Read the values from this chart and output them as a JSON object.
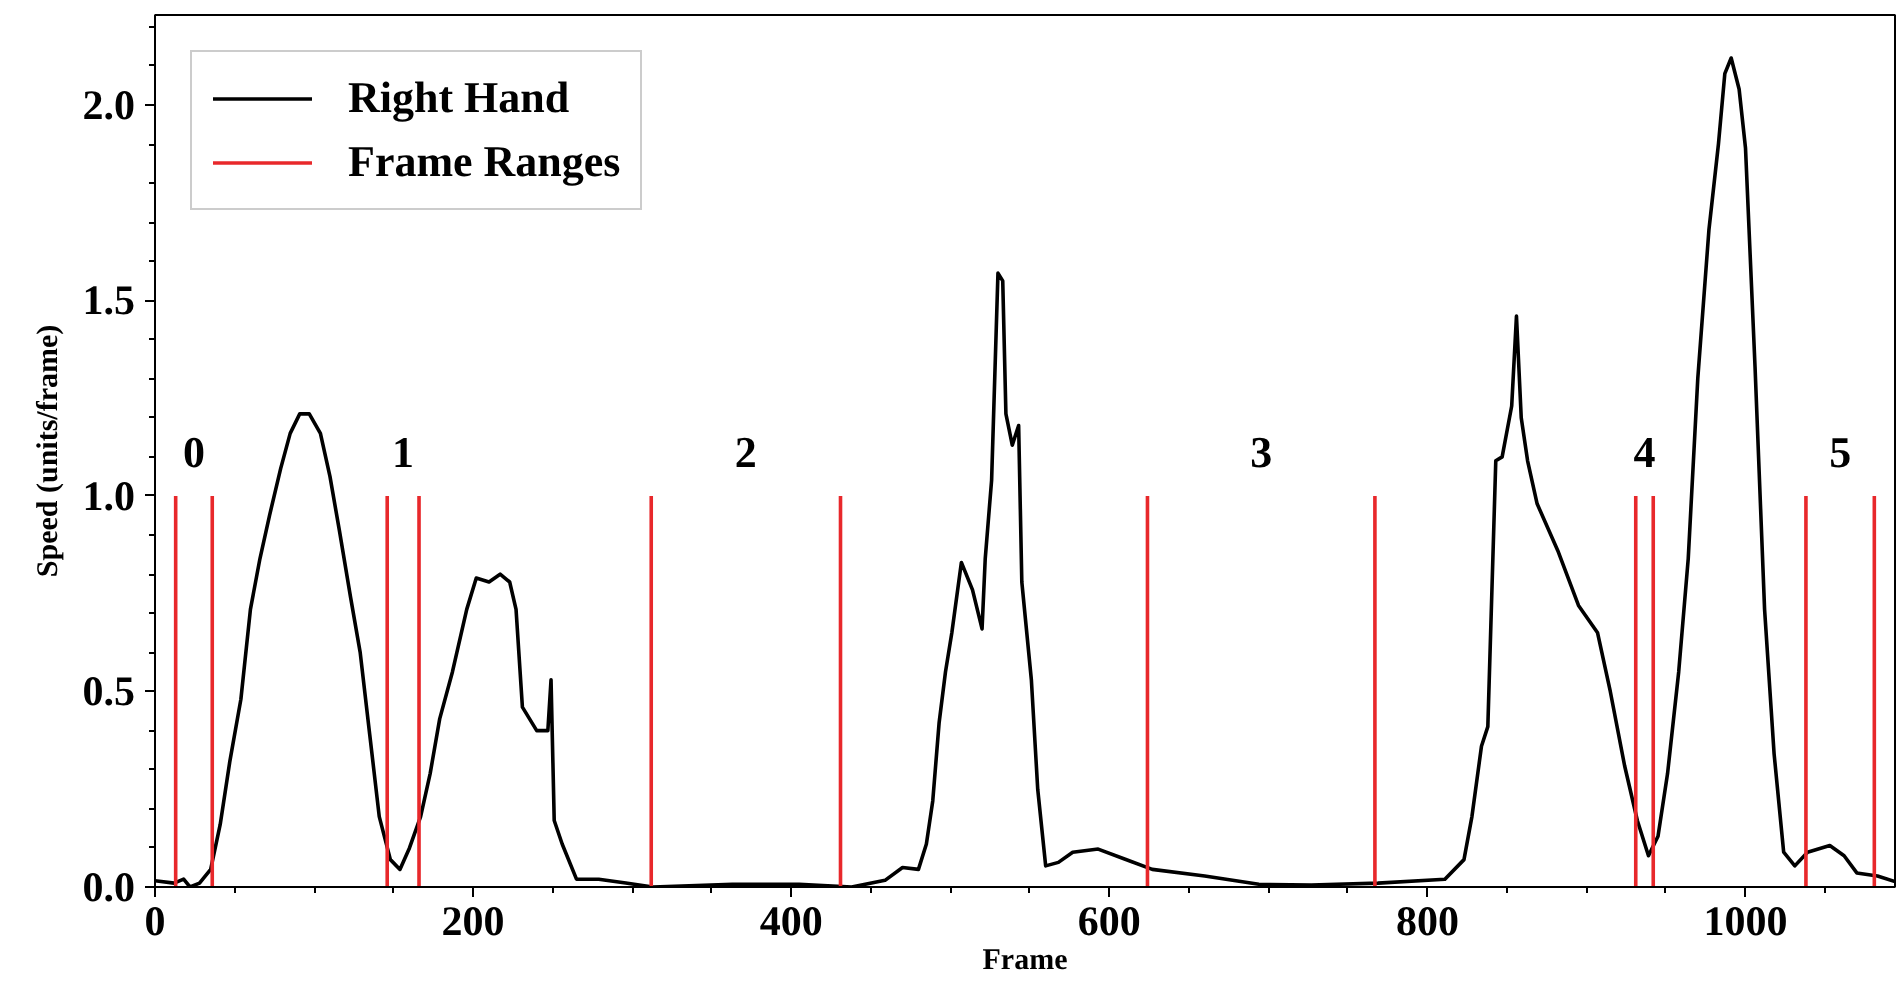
{
  "chart_data": {
    "type": "line",
    "xlabel": "Frame",
    "ylabel": "Speed (units/frame)",
    "xlim": [
      0,
      1094
    ],
    "ylim": [
      0,
      2.23
    ],
    "xticks": [
      0,
      200,
      400,
      600,
      800,
      1000
    ],
    "yticks": [
      {
        "value": 0,
        "label": "0.0"
      },
      0.5,
      {
        "value": 1,
        "label": "1.0"
      },
      1.5,
      {
        "value": 2,
        "label": "2.0"
      }
    ],
    "grid": false,
    "legend": "top left",
    "marker": "none",
    "line_style": "solid",
    "series": [
      {
        "name": "Right Hand",
        "color": "#000000",
        "x": [
          0,
          12,
          18,
          22,
          28,
          35,
          41,
          47,
          54,
          60,
          66,
          72,
          79,
          85,
          91,
          97,
          104,
          110,
          116,
          123,
          129,
          135,
          141,
          148,
          154,
          160,
          167,
          173,
          179,
          187,
          196,
          202,
          210,
          217,
          223,
          227,
          231,
          240,
          247,
          249,
          251,
          256,
          265,
          279,
          296,
          313,
          363,
          405,
          438,
          459,
          470,
          480,
          485,
          489,
          493,
          497,
          501,
          507,
          514,
          520,
          522,
          526,
          530,
          533,
          535,
          539,
          543,
          545,
          551,
          555,
          560,
          568,
          577,
          593,
          610,
          627,
          660,
          694,
          727,
          769,
          811,
          823,
          828,
          834,
          838,
          843,
          847,
          853,
          856,
          859,
          863,
          869,
          882,
          895,
          907,
          915,
          924,
          932,
          939,
          945,
          951,
          958,
          964,
          970,
          977,
          983,
          987,
          991,
          996,
          1000,
          1006,
          1012,
          1018,
          1024,
          1031,
          1039,
          1053,
          1062,
          1070,
          1083,
          1094
        ],
        "values": [
          0.016,
          0.01,
          0.02,
          0.0,
          0.01,
          0.045,
          0.16,
          0.32,
          0.48,
          0.71,
          0.84,
          0.95,
          1.07,
          1.16,
          1.21,
          1.21,
          1.16,
          1.05,
          0.91,
          0.74,
          0.6,
          0.39,
          0.18,
          0.07,
          0.045,
          0.1,
          0.18,
          0.29,
          0.43,
          0.55,
          0.71,
          0.79,
          0.78,
          0.8,
          0.78,
          0.71,
          0.46,
          0.4,
          0.4,
          0.53,
          0.17,
          0.11,
          0.02,
          0.02,
          0.01,
          0.0,
          0.007,
          0.007,
          0.0,
          0.017,
          0.05,
          0.045,
          0.11,
          0.22,
          0.42,
          0.55,
          0.65,
          0.83,
          0.76,
          0.66,
          0.84,
          1.04,
          1.57,
          1.55,
          1.21,
          1.13,
          1.18,
          0.78,
          0.53,
          0.25,
          0.054,
          0.063,
          0.089,
          0.097,
          0.071,
          0.045,
          0.028,
          0.007,
          0.005,
          0.01,
          0.02,
          0.07,
          0.18,
          0.36,
          0.41,
          1.09,
          1.1,
          1.23,
          1.46,
          1.2,
          1.09,
          0.98,
          0.86,
          0.72,
          0.65,
          0.5,
          0.31,
          0.17,
          0.08,
          0.13,
          0.29,
          0.55,
          0.84,
          1.3,
          1.68,
          1.9,
          2.08,
          2.12,
          2.04,
          1.89,
          1.33,
          0.71,
          0.34,
          0.089,
          0.054,
          0.089,
          0.106,
          0.08,
          0.036,
          0.028,
          0.014
        ]
      },
      {
        "name": "Frame Ranges",
        "color": "#e8282b",
        "x": [
          13,
          13,
          null,
          36,
          36,
          null,
          146,
          146,
          null,
          166,
          166,
          null,
          312,
          312,
          null,
          431,
          431,
          null,
          624,
          624,
          null,
          767,
          767,
          null,
          931,
          931,
          null,
          942,
          942,
          null,
          1038,
          1038,
          null,
          1081,
          1081,
          null
        ],
        "values": [
          0,
          1,
          null,
          0,
          1,
          null,
          0,
          1,
          null,
          0,
          1,
          null,
          0,
          1,
          null,
          0,
          1,
          null,
          0,
          1,
          null,
          0,
          1,
          null,
          0,
          1,
          null,
          0,
          1,
          null,
          0,
          1,
          null,
          0,
          1,
          null
        ]
      }
    ],
    "annotations": [
      "0",
      "1",
      "2",
      "3",
      "4",
      "5"
    ]
  }
}
